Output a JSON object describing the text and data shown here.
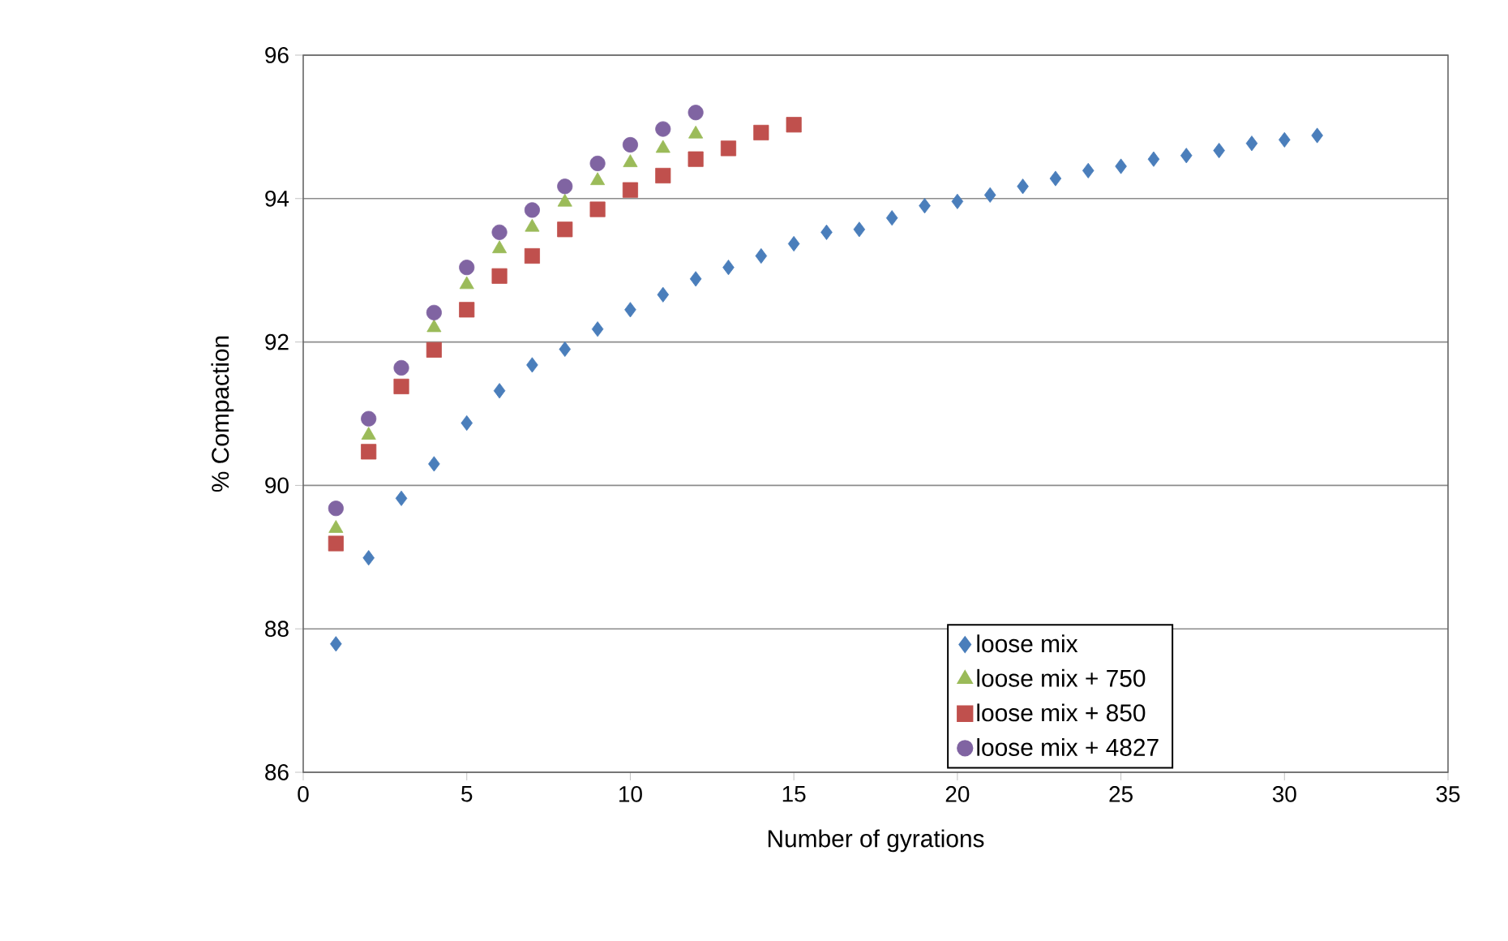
{
  "chart_data": {
    "type": "scatter",
    "xlabel": "Number of gyrations",
    "ylabel": "% Compaction",
    "xlim": [
      0,
      35
    ],
    "ylim": [
      86,
      96
    ],
    "xticks": [
      0,
      5,
      10,
      15,
      20,
      25,
      30,
      35
    ],
    "yticks": [
      86,
      88,
      90,
      92,
      94,
      96
    ],
    "grid": "y",
    "legend": "bottom right",
    "series": [
      {
        "name": "loose mix",
        "color": "#4a7ebb",
        "marker": "diamond",
        "x": [
          1,
          2,
          3,
          4,
          5,
          6,
          7,
          8,
          9,
          10,
          11,
          12,
          13,
          14,
          15,
          16,
          17,
          18,
          19,
          20,
          21,
          22,
          23,
          24,
          25,
          26,
          27,
          28,
          29,
          30,
          31
        ],
        "values": [
          87.79,
          88.99,
          89.82,
          90.3,
          90.87,
          91.32,
          91.68,
          91.9,
          92.18,
          92.45,
          92.66,
          92.88,
          93.04,
          93.2,
          93.37,
          93.53,
          93.57,
          93.73,
          93.9,
          93.96,
          94.05,
          94.17,
          94.28,
          94.39,
          94.45,
          94.55,
          94.6,
          94.67,
          94.77,
          94.82,
          94.88
        ]
      },
      {
        "name": "loose mix + 750",
        "color": "#9bbb59",
        "marker": "triangle",
        "x": [
          1,
          2,
          3,
          4,
          5,
          6,
          7,
          8,
          9,
          10,
          11,
          12
        ],
        "values": [
          89.4,
          90.7,
          null,
          92.2,
          92.8,
          93.3,
          93.6,
          93.95,
          94.25,
          94.5,
          94.7,
          94.9
        ]
      },
      {
        "name": "loose mix + 850",
        "color": "#c0504d",
        "marker": "square",
        "x": [
          1,
          2,
          3,
          4,
          5,
          6,
          7,
          8,
          9,
          10,
          11,
          12,
          13,
          14,
          15
        ],
        "values": [
          89.19,
          90.47,
          91.38,
          91.89,
          92.45,
          92.92,
          93.2,
          93.57,
          93.85,
          94.12,
          94.32,
          94.55,
          94.7,
          94.92,
          95.03
        ]
      },
      {
        "name": "loose mix + 4827",
        "color": "#8064a2",
        "marker": "circle",
        "x": [
          1,
          2,
          3,
          4,
          5,
          6,
          7,
          8,
          9,
          10,
          11,
          12
        ],
        "values": [
          89.68,
          90.93,
          91.64,
          92.41,
          93.04,
          93.53,
          93.84,
          94.17,
          94.49,
          94.75,
          94.97,
          95.2
        ]
      }
    ]
  }
}
